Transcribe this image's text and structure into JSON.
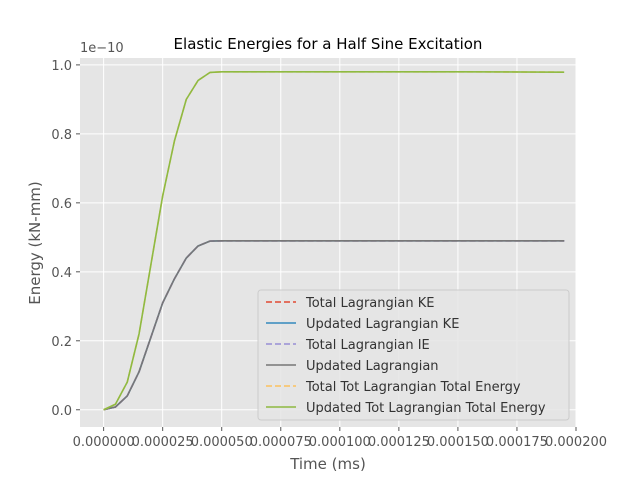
{
  "chart_data": {
    "type": "line",
    "title": "Elastic Energies for a Half Sine Excitation",
    "xlabel": "Time (ms)",
    "ylabel": "Energy (kN-mm)",
    "y_offset_label": "1e−10",
    "xlim": [
      -1e-05,
      0.0002
    ],
    "ylim": [
      -0.05,
      1.02
    ],
    "x_ticks": [
      0.0,
      2.5e-05,
      5e-05,
      7.5e-05,
      0.0001,
      0.000125,
      0.00015,
      0.000175,
      0.0002
    ],
    "x_tick_labels": [
      "0.000000",
      "0.000025",
      "0.000050",
      "0.000075",
      "0.000100",
      "0.000125",
      "0.000150",
      "0.000175",
      "0.000200"
    ],
    "y_ticks": [
      0.0,
      0.2,
      0.4,
      0.6,
      0.8,
      1.0
    ],
    "y_tick_labels": [
      "0.0",
      "0.2",
      "0.4",
      "0.6",
      "0.8",
      "1.0"
    ],
    "grid": true,
    "legend_position": "lower-right",
    "series": [
      {
        "name": "Total Lagrangian KE",
        "color": "#E24A33",
        "style": "dashed",
        "x": [
          0.0,
          5e-06,
          1e-05,
          1.5e-05,
          2e-05,
          2.5e-05,
          3e-05,
          3.5e-05,
          4e-05,
          4.5e-05,
          5e-05,
          0.0001,
          0.00015,
          0.000195
        ],
        "y": [
          0.0,
          0.008,
          0.04,
          0.11,
          0.21,
          0.31,
          0.38,
          0.44,
          0.475,
          0.489,
          0.49,
          0.49,
          0.49,
          0.49
        ]
      },
      {
        "name": "Updated Lagrangian KE",
        "color": "#348ABD",
        "style": "solid",
        "x": [
          0.0,
          5e-06,
          1e-05,
          1.5e-05,
          2e-05,
          2.5e-05,
          3e-05,
          3.5e-05,
          4e-05,
          4.5e-05,
          5e-05,
          0.0001,
          0.00015,
          0.000195
        ],
        "y": [
          0.0,
          0.008,
          0.04,
          0.11,
          0.21,
          0.31,
          0.38,
          0.44,
          0.475,
          0.489,
          0.49,
          0.49,
          0.49,
          0.49
        ]
      },
      {
        "name": "Total Lagrangian IE",
        "color": "#988ED5",
        "style": "dashed",
        "x": [
          0.0,
          5e-06,
          1e-05,
          1.5e-05,
          2e-05,
          2.5e-05,
          3e-05,
          3.5e-05,
          4e-05,
          4.5e-05,
          5e-05,
          0.0001,
          0.00015,
          0.000195
        ],
        "y": [
          0.0,
          0.008,
          0.04,
          0.11,
          0.21,
          0.31,
          0.38,
          0.44,
          0.475,
          0.489,
          0.49,
          0.49,
          0.49,
          0.49
        ]
      },
      {
        "name": "Updated Lagrangian",
        "color": "#777777",
        "style": "solid",
        "x": [
          0.0,
          5e-06,
          1e-05,
          1.5e-05,
          2e-05,
          2.5e-05,
          3e-05,
          3.5e-05,
          4e-05,
          4.5e-05,
          5e-05,
          0.0001,
          0.00015,
          0.000195
        ],
        "y": [
          0.0,
          0.008,
          0.04,
          0.11,
          0.21,
          0.31,
          0.38,
          0.44,
          0.475,
          0.489,
          0.49,
          0.49,
          0.49,
          0.49
        ]
      },
      {
        "name": "Total Tot Lagrangian Total Energy",
        "color": "#FBC15E",
        "style": "dashed",
        "x": [
          0.0,
          5e-06,
          1e-05,
          1.5e-05,
          2e-05,
          2.5e-05,
          3e-05,
          3.5e-05,
          4e-05,
          4.5e-05,
          5e-05,
          0.0001,
          0.00015,
          0.000195
        ],
        "y": [
          0.0,
          0.016,
          0.08,
          0.22,
          0.42,
          0.62,
          0.78,
          0.9,
          0.955,
          0.978,
          0.98,
          0.98,
          0.98,
          0.979
        ]
      },
      {
        "name": "Updated Tot Lagrangian Total Energy",
        "color": "#8EBA42",
        "style": "solid",
        "x": [
          0.0,
          5e-06,
          1e-05,
          1.5e-05,
          2e-05,
          2.5e-05,
          3e-05,
          3.5e-05,
          4e-05,
          4.5e-05,
          5e-05,
          0.0001,
          0.00015,
          0.000195
        ],
        "y": [
          0.0,
          0.016,
          0.08,
          0.22,
          0.42,
          0.62,
          0.78,
          0.9,
          0.955,
          0.978,
          0.98,
          0.98,
          0.98,
          0.979
        ]
      }
    ]
  }
}
